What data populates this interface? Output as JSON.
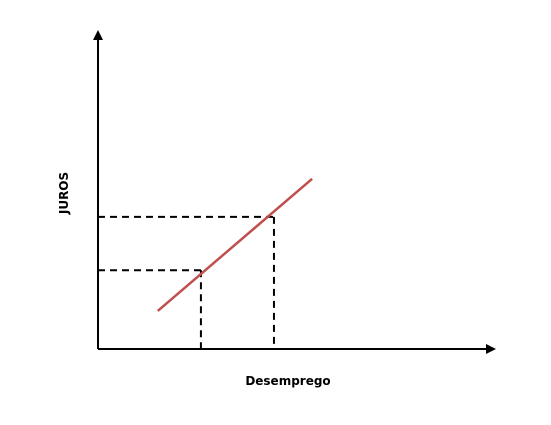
{
  "chart_data": {
    "type": "line",
    "title": "",
    "xlabel": "Desemprego",
    "ylabel": "JUROS",
    "grid": false,
    "legend": "none",
    "xlim": [
      0,
      10
    ],
    "ylim": [
      0,
      10
    ],
    "series": [
      {
        "x": [
          1.8,
          6.45
        ],
        "y": [
          1.5,
          6.7
        ],
        "color": "#c0504d"
      }
    ],
    "reference_points": [
      {
        "x": 3.1,
        "y": 3.1
      },
      {
        "x": 5.3,
        "y": 5.2
      }
    ]
  },
  "colors": {
    "axis": "#000000",
    "line": "#c0504d",
    "guides": "#000000"
  }
}
